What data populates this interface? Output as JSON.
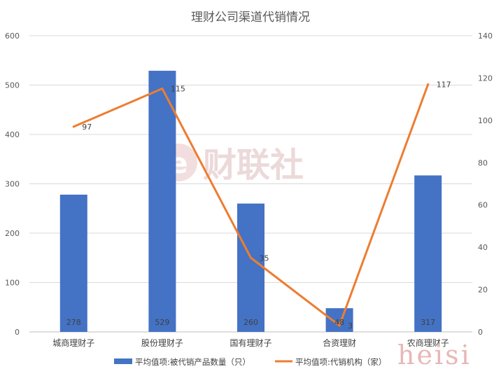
{
  "chart_data": {
    "type": "bar",
    "title": "理财公司渠道代销情况",
    "categories": [
      "城商理财子",
      "股份理财子",
      "国有理财子",
      "合资理财",
      "农商理财子"
    ],
    "series": [
      {
        "name": "平均值项:被代销产品数量（只）",
        "type": "bar",
        "axis": "left",
        "color": "#4472C4",
        "values": [
          278,
          529,
          260,
          48,
          317
        ]
      },
      {
        "name": "平均值项:代销机构（家）",
        "type": "line",
        "axis": "right",
        "color": "#ED7D31",
        "values": [
          97,
          115,
          35,
          3,
          117
        ]
      }
    ],
    "y_left": {
      "min": 0,
      "max": 600,
      "step": 100,
      "ticks": [
        "0",
        "100",
        "200",
        "300",
        "400",
        "500",
        "600"
      ]
    },
    "y_right": {
      "min": 0,
      "max": 140,
      "step": 20,
      "ticks": [
        "0",
        "20",
        "40",
        "60",
        "80",
        "100",
        "120",
        "140"
      ]
    },
    "grid": true,
    "legend": "bottom"
  },
  "watermark": {
    "text": "财联社",
    "icon": "caijing-logo-e-icon"
  },
  "signature": "heisi"
}
